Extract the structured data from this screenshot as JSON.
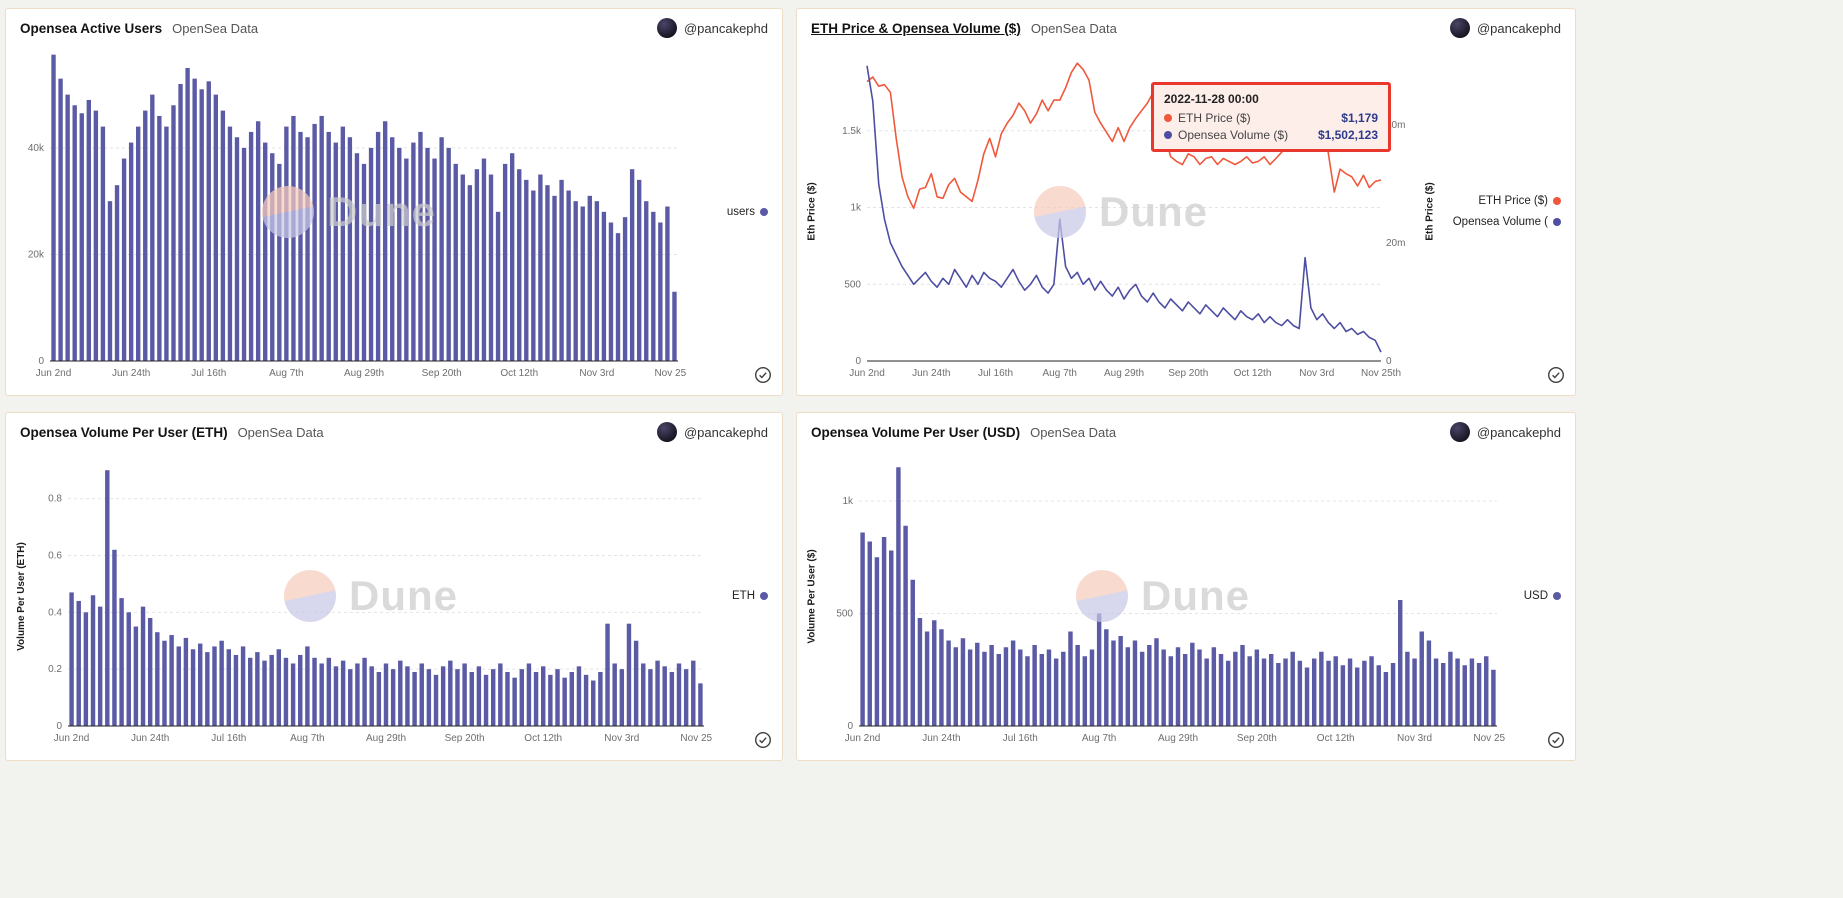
{
  "author": {
    "handle": "@pancakephd"
  },
  "panels": [
    {
      "title": "Opensea Active Users",
      "subtitle": "OpenSea Data",
      "author": "@pancakephd",
      "legend": [
        {
          "label": "users",
          "color": "#5b5aa5"
        }
      ]
    },
    {
      "title": "ETH Price & Opensea Volume ($)",
      "subtitle": "OpenSea Data",
      "author": "@pancakephd",
      "left_axis_label": "Eth Price ($)",
      "right_axis_label": "Eth Price ($)",
      "legend": [
        {
          "label": "ETH Price ($)",
          "color": "#f0583c"
        },
        {
          "label": "Opensea Volume (",
          "color": "#4e4ea3"
        }
      ],
      "tooltip": {
        "date": "2022-11-28 00:00",
        "rows": [
          {
            "label": "ETH Price ($)",
            "value": "$1,179",
            "color": "#f0583c"
          },
          {
            "label": "Opensea Volume ($)",
            "value": "$1,502,123",
            "color": "#4e4ea3"
          }
        ]
      }
    },
    {
      "title": "Opensea Volume Per User (ETH)",
      "subtitle": "OpenSea Data",
      "author": "@pancakephd",
      "y_axis_label": "Volume Per User (ETH)",
      "legend": [
        {
          "label": "ETH",
          "color": "#5b5aa5"
        }
      ]
    },
    {
      "title": "Opensea Volume Per User (USD)",
      "subtitle": "OpenSea Data",
      "author": "@pancakephd",
      "y_axis_label": "Volume Per User ($)",
      "legend": [
        {
          "label": "USD",
          "color": "#5b5aa5"
        }
      ]
    }
  ],
  "chart_data": [
    {
      "type": "bar",
      "title": "Opensea Active Users",
      "ylabel": "",
      "color": "#5b5aa5",
      "x_description": "daily, Jun 2 - Nov 28 2022 (values estimated at ~2-day intervals)",
      "x_tick_indices": [
        0,
        11,
        22,
        33,
        44,
        55,
        66,
        77,
        88
      ],
      "x_tick_labels": [
        "Jun 2nd",
        "Jun 24th",
        "Jul 16th",
        "Aug 7th",
        "Aug 29th",
        "Sep 20th",
        "Oct 12th",
        "Nov 3rd",
        "Nov 25th"
      ],
      "y_ticks": [
        {
          "v": 0,
          "label": "0"
        },
        {
          "v": 20000,
          "label": "20k"
        },
        {
          "v": 40000,
          "label": "40k"
        }
      ],
      "ylim": [
        0,
        58000
      ],
      "series_label": "users",
      "values": [
        57500,
        53000,
        50000,
        48000,
        46500,
        49000,
        47000,
        44000,
        30000,
        33000,
        38000,
        41000,
        44000,
        47000,
        50000,
        46000,
        44000,
        48000,
        52000,
        55000,
        53000,
        51000,
        52500,
        50000,
        47000,
        44000,
        42000,
        40000,
        43000,
        45000,
        41000,
        39000,
        37000,
        44000,
        46000,
        43000,
        42000,
        44500,
        46000,
        43000,
        41000,
        44000,
        42000,
        39000,
        37000,
        40000,
        43000,
        45000,
        42000,
        40000,
        38000,
        41000,
        43000,
        40000,
        38000,
        42000,
        40000,
        37000,
        35000,
        33000,
        36000,
        38000,
        35000,
        28000,
        37000,
        39000,
        36000,
        34000,
        32000,
        35000,
        33000,
        31000,
        34000,
        32000,
        30000,
        29000,
        31000,
        30000,
        28000,
        26000,
        24000,
        27000,
        36000,
        34000,
        30000,
        28000,
        26000,
        29000,
        13000
      ]
    },
    {
      "type": "line",
      "title": "ETH Price & Opensea Volume ($)",
      "x_description": "daily, Jun 2 - Nov 28 2022 (values estimated at ~2-day intervals)",
      "x_tick_indices": [
        0,
        11,
        22,
        33,
        44,
        55,
        66,
        77,
        88
      ],
      "x_tick_labels": [
        "Jun 2nd",
        "Jun 24th",
        "Jul 16th",
        "Aug 7th",
        "Aug 29th",
        "Sep 20th",
        "Oct 12th",
        "Nov 3rd",
        "Nov 25th"
      ],
      "left_axis": {
        "label": "Eth Price ($)",
        "ticks": [
          {
            "v": 0,
            "label": "0"
          },
          {
            "v": 500,
            "label": "500"
          },
          {
            "v": 1000,
            "label": "1k"
          },
          {
            "v": 1500,
            "label": "1.5k"
          }
        ],
        "ylim": [
          0,
          2000
        ]
      },
      "right_axis": {
        "label": "Eth Price ($)",
        "unit": "USD millions",
        "ticks": [
          {
            "v": 0,
            "label": "0"
          },
          {
            "v": 20,
            "label": "20m"
          },
          {
            "v": 40,
            "label": "40m"
          }
        ],
        "ylim": [
          0,
          52
        ]
      },
      "series": [
        {
          "name": "ETH Price ($)",
          "axis": "left",
          "color": "#f0583c",
          "values": [
            1820,
            1850,
            1790,
            1800,
            1750,
            1450,
            1200,
            1070,
            995,
            1120,
            1130,
            1220,
            1070,
            1060,
            1150,
            1190,
            1100,
            1070,
            1040,
            1180,
            1350,
            1450,
            1330,
            1480,
            1550,
            1600,
            1680,
            1630,
            1550,
            1610,
            1700,
            1630,
            1700,
            1700,
            1780,
            1880,
            1940,
            1900,
            1830,
            1620,
            1550,
            1490,
            1430,
            1520,
            1430,
            1520,
            1580,
            1630,
            1680,
            1750,
            1710,
            1470,
            1330,
            1300,
            1280,
            1350,
            1330,
            1280,
            1320,
            1330,
            1280,
            1320,
            1300,
            1280,
            1300,
            1330,
            1290,
            1300,
            1330,
            1280,
            1320,
            1360,
            1450,
            1520,
            1580,
            1620,
            1570,
            1530,
            1630,
            1350,
            1100,
            1250,
            1220,
            1200,
            1140,
            1210,
            1130,
            1170,
            1179
          ]
        },
        {
          "name": "Opensea Volume ($)",
          "axis": "right",
          "color": "#4e4ea3",
          "values": [
            50,
            44,
            30,
            24,
            20,
            18,
            16,
            14.5,
            13,
            14,
            15,
            13.5,
            12.5,
            14,
            13,
            15.5,
            14,
            12.5,
            14.5,
            13,
            15,
            14,
            13.5,
            12.5,
            14,
            15.5,
            13.5,
            12,
            13,
            14.5,
            12.5,
            11.5,
            13,
            24,
            16,
            14,
            15,
            13,
            14,
            12,
            13.5,
            12,
            11,
            12.5,
            10.5,
            12,
            13,
            11,
            10,
            11.5,
            10,
            9,
            10.5,
            9.5,
            8.5,
            10,
            9,
            8,
            9.5,
            8.5,
            7.5,
            9,
            8,
            7,
            8.5,
            7.5,
            7,
            8,
            6.5,
            7.5,
            6.5,
            6,
            7,
            6,
            5.5,
            17.5,
            9,
            7,
            8,
            6.5,
            5.5,
            6.5,
            5,
            5.5,
            4.5,
            5,
            4,
            3.5,
            1.5
          ]
        }
      ],
      "tooltip_point": {
        "date": "2022-11-28 00:00",
        "eth_price_usd": 1179,
        "opensea_volume_usd": 1502123
      }
    },
    {
      "type": "bar",
      "title": "Opensea Volume Per User (ETH)",
      "ylabel": "Volume Per User (ETH)",
      "color": "#5b5aa5",
      "x_description": "daily, Jun 2 - Nov 28 2022 (values estimated at ~2-day intervals)",
      "x_tick_indices": [
        0,
        11,
        22,
        33,
        44,
        55,
        66,
        77,
        88
      ],
      "x_tick_labels": [
        "Jun 2nd",
        "Jun 24th",
        "Jul 16th",
        "Aug 7th",
        "Aug 29th",
        "Sep 20th",
        "Oct 12th",
        "Nov 3rd",
        "Nov 25th"
      ],
      "y_ticks": [
        {
          "v": 0,
          "label": "0"
        },
        {
          "v": 0.2,
          "label": "0.2"
        },
        {
          "v": 0.4,
          "label": "0.4"
        },
        {
          "v": 0.6,
          "label": "0.6"
        },
        {
          "v": 0.8,
          "label": "0.8"
        }
      ],
      "ylim": [
        0,
        0.95
      ],
      "series_label": "ETH",
      "values": [
        0.47,
        0.44,
        0.4,
        0.46,
        0.42,
        0.9,
        0.62,
        0.45,
        0.4,
        0.35,
        0.42,
        0.38,
        0.33,
        0.3,
        0.32,
        0.28,
        0.31,
        0.27,
        0.29,
        0.26,
        0.28,
        0.3,
        0.27,
        0.25,
        0.28,
        0.24,
        0.26,
        0.23,
        0.25,
        0.27,
        0.24,
        0.22,
        0.25,
        0.28,
        0.24,
        0.22,
        0.24,
        0.21,
        0.23,
        0.2,
        0.22,
        0.24,
        0.21,
        0.19,
        0.22,
        0.2,
        0.23,
        0.21,
        0.19,
        0.22,
        0.2,
        0.18,
        0.21,
        0.23,
        0.2,
        0.22,
        0.19,
        0.21,
        0.18,
        0.2,
        0.22,
        0.19,
        0.17,
        0.2,
        0.22,
        0.19,
        0.21,
        0.18,
        0.2,
        0.17,
        0.19,
        0.21,
        0.18,
        0.16,
        0.19,
        0.36,
        0.22,
        0.2,
        0.36,
        0.3,
        0.22,
        0.2,
        0.23,
        0.21,
        0.19,
        0.22,
        0.2,
        0.23,
        0.15
      ]
    },
    {
      "type": "bar",
      "title": "Opensea Volume Per User (USD)",
      "ylabel": "Volume Per User ($)",
      "color": "#5b5aa5",
      "x_description": "daily, Jun 2 - Nov 28 2022 (values estimated at ~2-day intervals)",
      "x_tick_indices": [
        0,
        11,
        22,
        33,
        44,
        55,
        66,
        77,
        88
      ],
      "x_tick_labels": [
        "Jun 2nd",
        "Jun 24th",
        "Jul 16th",
        "Aug 7th",
        "Aug 29th",
        "Sep 20th",
        "Oct 12th",
        "Nov 3rd",
        "Nov 25th"
      ],
      "y_ticks": [
        {
          "v": 0,
          "label": "0"
        },
        {
          "v": 500,
          "label": "500"
        },
        {
          "v": 1000,
          "label": "1k"
        }
      ],
      "ylim": [
        0,
        1200
      ],
      "series_label": "USD",
      "values": [
        860,
        820,
        750,
        840,
        780,
        1150,
        890,
        650,
        480,
        420,
        470,
        430,
        380,
        350,
        390,
        340,
        370,
        330,
        360,
        320,
        350,
        380,
        340,
        310,
        360,
        320,
        340,
        300,
        330,
        420,
        360,
        310,
        340,
        500,
        430,
        380,
        400,
        350,
        380,
        330,
        360,
        390,
        340,
        310,
        350,
        320,
        370,
        340,
        300,
        350,
        320,
        290,
        330,
        360,
        310,
        340,
        300,
        320,
        280,
        300,
        330,
        290,
        260,
        300,
        330,
        290,
        310,
        270,
        300,
        260,
        290,
        310,
        270,
        240,
        280,
        560,
        330,
        300,
        420,
        380,
        300,
        280,
        330,
        300,
        270,
        300,
        280,
        310,
        250
      ]
    }
  ],
  "watermark": {
    "brand": "Dune"
  }
}
